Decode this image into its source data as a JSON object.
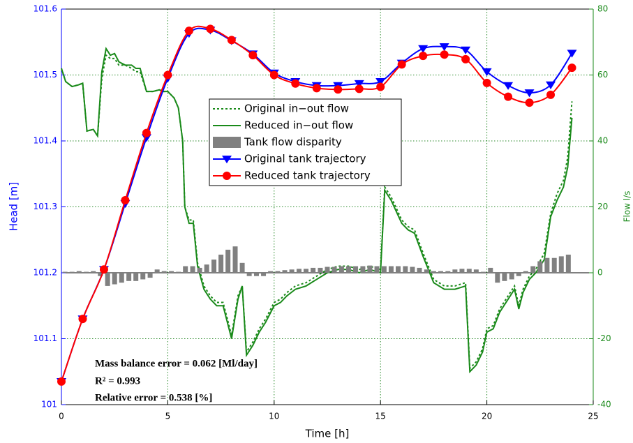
{
  "chart_data": {
    "type": "line",
    "xlabel": "Time [h]",
    "ylabel": "Head [m]",
    "y2label": "Flow l/s",
    "xlim": [
      0,
      25
    ],
    "xticks": [
      0,
      5,
      10,
      15,
      20,
      25
    ],
    "ylim": [
      101,
      101.6
    ],
    "yticks": [
      101,
      101.1,
      101.2,
      101.3,
      101.4,
      101.5,
      101.6
    ],
    "y2lim": [
      -40,
      80
    ],
    "y2ticks": [
      -40,
      -20,
      0,
      20,
      40,
      60,
      80
    ],
    "grid": true,
    "legend": "center",
    "annotations": [
      "Mass balance error = 0.062 [Ml/day]",
      "R² = 0.993",
      "Relative error = 0.538 [%]"
    ],
    "series": [
      {
        "name": "Original in−out flow",
        "type": "line",
        "style": "dotted",
        "color": "#1a8a1a",
        "axis": "y2",
        "x": [
          0,
          0.2,
          0.5,
          0.8,
          1.0,
          1.2,
          1.5,
          1.7,
          1.9,
          2.1,
          2.3,
          2.5,
          2.7,
          3.0,
          3.3,
          3.5,
          3.7,
          4.0,
          4.3,
          4.6,
          4.8,
          5.0,
          5.3,
          5.5,
          5.7,
          5.8,
          6.0,
          6.2,
          6.4,
          6.7,
          7.0,
          7.3,
          7.6,
          8.0,
          8.3,
          8.5,
          8.7,
          9.0,
          9.3,
          9.6,
          10.0,
          10.3,
          10.6,
          11,
          11.5,
          12,
          12.5,
          13,
          13.5,
          14,
          14.5,
          15,
          15.2,
          15.5,
          16,
          16.3,
          16.6,
          17,
          17.5,
          18,
          18.5,
          19,
          19.2,
          19.5,
          19.8,
          20,
          20.3,
          20.6,
          21,
          21.3,
          21.5,
          21.7,
          22,
          22.3,
          22.7,
          23.0,
          23.3,
          23.6,
          23.8,
          24
        ],
        "values": [
          62,
          58,
          56.5,
          57,
          57.5,
          43,
          43.5,
          41.5,
          59,
          66,
          65,
          65,
          63,
          63,
          62,
          61,
          61,
          55,
          55,
          55.5,
          55,
          55,
          53,
          50,
          40,
          20,
          16,
          16,
          3,
          -4,
          -7,
          -9,
          -9,
          -19,
          -7,
          -4,
          -24,
          -21,
          -17,
          -14,
          -9,
          -8,
          -6,
          -4,
          -3,
          -1,
          1,
          2,
          2,
          1,
          2,
          1,
          26,
          23,
          16,
          14,
          13,
          6,
          -2,
          -4,
          -4,
          -3,
          -29,
          -27,
          -23,
          -17,
          -16,
          -11,
          -7,
          -4,
          -10,
          -5,
          -1,
          1,
          6,
          18,
          24,
          28,
          35,
          52
        ]
      },
      {
        "name": "Reduced in−out flow",
        "type": "line",
        "style": "solid",
        "color": "#1a8a1a",
        "axis": "y2",
        "x": [
          0,
          0.2,
          0.5,
          0.8,
          1.0,
          1.2,
          1.5,
          1.7,
          1.9,
          2.1,
          2.3,
          2.5,
          2.7,
          3.0,
          3.3,
          3.5,
          3.7,
          4.0,
          4.3,
          4.6,
          4.8,
          5.0,
          5.3,
          5.5,
          5.7,
          5.8,
          6.0,
          6.2,
          6.4,
          6.7,
          7.0,
          7.3,
          7.6,
          8.0,
          8.3,
          8.5,
          8.7,
          9.0,
          9.3,
          9.6,
          10.0,
          10.3,
          10.6,
          11,
          11.5,
          12,
          12.5,
          13,
          13.5,
          14,
          14.5,
          15,
          15.2,
          15.5,
          16,
          16.3,
          16.6,
          17,
          17.5,
          18,
          18.5,
          19,
          19.2,
          19.5,
          19.8,
          20,
          20.3,
          20.6,
          21,
          21.3,
          21.5,
          21.7,
          22,
          22.3,
          22.7,
          23.0,
          23.3,
          23.6,
          23.8,
          24
        ],
        "values": [
          62,
          58,
          56.5,
          57,
          57.5,
          43,
          43.5,
          41.5,
          61,
          68,
          66,
          66.5,
          64,
          63,
          63,
          62,
          62,
          55,
          55,
          55.5,
          55,
          55,
          53,
          50,
          40,
          20,
          15,
          15,
          2,
          -5,
          -8,
          -10,
          -10,
          -20,
          -8,
          -4,
          -25,
          -22,
          -18,
          -15,
          -10,
          -9,
          -7,
          -5,
          -4,
          -2,
          0,
          1,
          1,
          0,
          1,
          0,
          25,
          22,
          15,
          13,
          12,
          5,
          -3,
          -5,
          -5,
          -4,
          -30,
          -28,
          -24,
          -18,
          -17,
          -12,
          -8,
          -5,
          -11,
          -6,
          -2,
          0,
          4,
          17,
          22,
          26,
          32,
          47
        ]
      },
      {
        "name": "Tank flow disparity",
        "type": "bar",
        "color": "#808080",
        "axis": "y2",
        "x": [
          0.17,
          0.5,
          0.83,
          1.17,
          1.5,
          1.83,
          2.17,
          2.5,
          2.83,
          3.17,
          3.5,
          3.83,
          4.17,
          4.5,
          4.83,
          5.17,
          5.5,
          5.83,
          6.17,
          6.5,
          6.83,
          7.17,
          7.5,
          7.83,
          8.17,
          8.5,
          8.83,
          9.17,
          9.5,
          9.83,
          10.17,
          10.5,
          10.83,
          11.17,
          11.5,
          11.83,
          12.17,
          12.5,
          12.83,
          13.17,
          13.5,
          13.83,
          14.17,
          14.5,
          14.83,
          15.17,
          15.5,
          15.83,
          16.17,
          16.5,
          16.83,
          17.17,
          17.5,
          17.83,
          18.17,
          18.5,
          18.83,
          19.17,
          19.5,
          19.83,
          20.17,
          20.5,
          20.83,
          21.17,
          21.5,
          21.83,
          22.17,
          22.5,
          22.83,
          23.17,
          23.5,
          23.83
        ],
        "values": [
          0.3,
          0.3,
          0.5,
          0.3,
          0.5,
          -1,
          -4,
          -3.5,
          -3,
          -2.5,
          -2.5,
          -2,
          -1.5,
          1,
          0.5,
          0.5,
          0.3,
          2,
          2,
          1.5,
          2.5,
          4,
          5.5,
          7,
          8,
          3,
          -1,
          -1,
          -1,
          0.5,
          0.5,
          0.8,
          1,
          1.2,
          1.2,
          1.5,
          1.5,
          1.8,
          1.8,
          2,
          2,
          2,
          2,
          2.2,
          2,
          2,
          2,
          2,
          2,
          1.8,
          1.5,
          1,
          0.5,
          0.5,
          0.5,
          1,
          1.2,
          1.2,
          1,
          0.3,
          1.5,
          -3,
          -2.5,
          -2,
          -1,
          0.5,
          2,
          3.5,
          4.5,
          4.5,
          5,
          5.5
        ]
      },
      {
        "name": "Original tank trajectory",
        "type": "line",
        "style": "solid",
        "marker": "triangle",
        "color": "#0000ff",
        "x": [
          0,
          1,
          2,
          3,
          4,
          5,
          6,
          7,
          8,
          9,
          10,
          11,
          12,
          13,
          14,
          15,
          16,
          17,
          18,
          19,
          20,
          21,
          22,
          23,
          24
        ],
        "values": [
          101.035,
          101.13,
          101.205,
          101.305,
          101.405,
          101.495,
          101.563,
          101.568,
          101.552,
          101.532,
          101.503,
          101.49,
          101.484,
          101.484,
          101.487,
          101.49,
          101.518,
          101.54,
          101.543,
          101.538,
          101.505,
          101.484,
          101.473,
          101.485,
          101.533
        ]
      },
      {
        "name": "Reduced tank trajectory",
        "type": "line",
        "style": "solid",
        "marker": "circle",
        "color": "#ff0000",
        "x": [
          0,
          1,
          2,
          3,
          4,
          5,
          6,
          7,
          8,
          9,
          10,
          11,
          12,
          13,
          14,
          15,
          16,
          17,
          18,
          19,
          20,
          21,
          22,
          23,
          24
        ],
        "values": [
          101.035,
          101.13,
          101.205,
          101.31,
          101.412,
          101.5,
          101.567,
          101.57,
          101.553,
          101.53,
          101.5,
          101.487,
          101.48,
          101.478,
          101.479,
          101.482,
          101.516,
          101.529,
          101.531,
          101.524,
          101.488,
          101.467,
          101.458,
          101.47,
          101.511
        ]
      }
    ]
  }
}
